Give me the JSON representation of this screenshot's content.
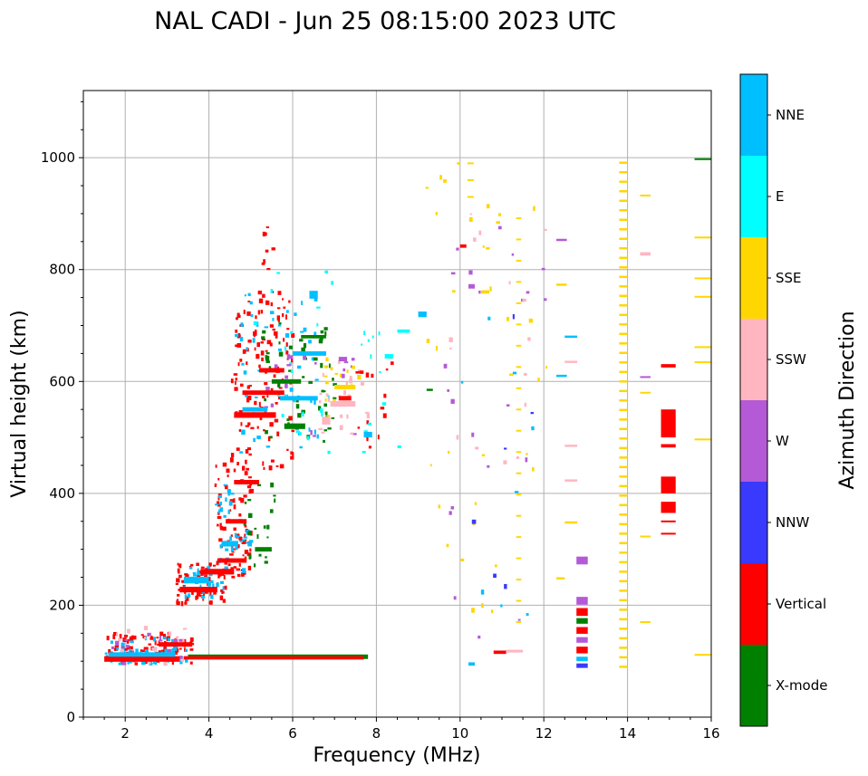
{
  "chart_data": {
    "type": "scatter",
    "title": "NAL CADI - Jun 25 08:15:00 2023 UTC",
    "xlabel": "Frequency (MHz)",
    "ylabel": "Virtual height (km)",
    "xlim": [
      1,
      16
    ],
    "ylim": [
      0,
      1120
    ],
    "xticks": [
      2,
      4,
      6,
      8,
      10,
      12,
      14,
      16
    ],
    "yticks": [
      0,
      200,
      400,
      600,
      800,
      1000
    ],
    "grid": true,
    "colorbar": {
      "label": "Azimuth Direction",
      "categories": [
        {
          "name": "X-mode",
          "color": "#008000"
        },
        {
          "name": "Vertical",
          "color": "#ff0000"
        },
        {
          "name": "NNW",
          "color": "#3a3aff"
        },
        {
          "name": "W",
          "color": "#b45ad6"
        },
        {
          "name": "SSW",
          "color": "#ffb6c1"
        },
        {
          "name": "SSE",
          "color": "#ffd700"
        },
        {
          "name": "E",
          "color": "#00ffff"
        },
        {
          "name": "NNE",
          "color": "#00bfff"
        }
      ]
    },
    "segments": [
      {
        "dir": "X-mode",
        "f0": 3.5,
        "f1": 7.8,
        "h": 108,
        "dh": 8
      },
      {
        "dir": "Vertical",
        "f0": 3.4,
        "f1": 7.7,
        "h": 106,
        "dh": 6
      },
      {
        "dir": "Vertical",
        "f0": 1.5,
        "f1": 3.3,
        "h": 104,
        "dh": 10
      },
      {
        "dir": "NNE",
        "f0": 1.6,
        "f1": 3.2,
        "h": 112,
        "dh": 8
      },
      {
        "dir": "Vertical",
        "f0": 2.8,
        "f1": 3.6,
        "h": 130,
        "dh": 8
      },
      {
        "dir": "Vertical",
        "f0": 3.3,
        "f1": 4.2,
        "h": 228,
        "dh": 10
      },
      {
        "dir": "NNE",
        "f0": 3.4,
        "f1": 4.0,
        "h": 245,
        "dh": 12
      },
      {
        "dir": "Vertical",
        "f0": 3.8,
        "f1": 4.6,
        "h": 260,
        "dh": 10
      },
      {
        "dir": "Vertical",
        "f0": 4.2,
        "f1": 4.9,
        "h": 280,
        "dh": 8
      },
      {
        "dir": "NNE",
        "f0": 4.3,
        "f1": 4.7,
        "h": 310,
        "dh": 10
      },
      {
        "dir": "Vertical",
        "f0": 4.4,
        "f1": 4.9,
        "h": 350,
        "dh": 8
      },
      {
        "dir": "X-mode",
        "f0": 5.1,
        "f1": 5.5,
        "h": 300,
        "dh": 8
      },
      {
        "dir": "Vertical",
        "f0": 4.6,
        "f1": 5.2,
        "h": 420,
        "dh": 8
      },
      {
        "dir": "Vertical",
        "f0": 4.6,
        "f1": 5.6,
        "h": 540,
        "dh": 10
      },
      {
        "dir": "NNE",
        "f0": 4.8,
        "f1": 5.4,
        "h": 550,
        "dh": 8
      },
      {
        "dir": "Vertical",
        "f0": 4.8,
        "f1": 5.8,
        "h": 580,
        "dh": 8
      },
      {
        "dir": "X-mode",
        "f0": 5.8,
        "f1": 6.3,
        "h": 520,
        "dh": 10
      },
      {
        "dir": "NNE",
        "f0": 5.7,
        "f1": 6.6,
        "h": 570,
        "dh": 8
      },
      {
        "dir": "X-mode",
        "f0": 5.5,
        "f1": 6.2,
        "h": 600,
        "dh": 8
      },
      {
        "dir": "Vertical",
        "f0": 5.2,
        "f1": 5.8,
        "h": 620,
        "dh": 8
      },
      {
        "dir": "NNE",
        "f0": 6.0,
        "f1": 6.8,
        "h": 650,
        "dh": 8
      },
      {
        "dir": "X-mode",
        "f0": 6.2,
        "f1": 6.8,
        "h": 680,
        "dh": 6
      },
      {
        "dir": "NNE",
        "f0": 6.4,
        "f1": 6.6,
        "h": 755,
        "dh": 14
      },
      {
        "dir": "SSW",
        "f0": 6.7,
        "f1": 6.9,
        "h": 530,
        "dh": 14
      },
      {
        "dir": "SSW",
        "f0": 6.9,
        "f1": 7.5,
        "h": 560,
        "dh": 10
      },
      {
        "dir": "SSE",
        "f0": 7.0,
        "f1": 7.5,
        "h": 590,
        "dh": 8
      },
      {
        "dir": "W",
        "f0": 7.1,
        "f1": 7.3,
        "h": 640,
        "dh": 8
      },
      {
        "dir": "Vertical",
        "f0": 7.1,
        "f1": 7.4,
        "h": 570,
        "dh": 8
      },
      {
        "dir": "NNE",
        "f0": 7.7,
        "f1": 7.9,
        "h": 505,
        "dh": 10
      },
      {
        "dir": "E",
        "f0": 8.2,
        "f1": 8.4,
        "h": 645,
        "dh": 8
      },
      {
        "dir": "E",
        "f0": 8.5,
        "f1": 8.8,
        "h": 690,
        "dh": 6
      },
      {
        "dir": "NNE",
        "f0": 9.0,
        "f1": 9.2,
        "h": 720,
        "dh": 10
      },
      {
        "dir": "X-mode",
        "f0": 9.2,
        "f1": 9.35,
        "h": 585,
        "dh": 4
      },
      {
        "dir": "Vertical",
        "f0": 10.0,
        "f1": 10.15,
        "h": 842,
        "dh": 6
      },
      {
        "dir": "W",
        "f0": 10.2,
        "f1": 10.35,
        "h": 770,
        "dh": 8
      },
      {
        "dir": "SSE",
        "f0": 10.5,
        "f1": 10.7,
        "h": 760,
        "dh": 6
      },
      {
        "dir": "Vertical",
        "f0": 10.8,
        "f1": 11.1,
        "h": 116,
        "dh": 6
      },
      {
        "dir": "SSW",
        "f0": 11.1,
        "f1": 11.5,
        "h": 118,
        "dh": 5
      },
      {
        "dir": "NNE",
        "f0": 10.2,
        "f1": 10.35,
        "h": 95,
        "dh": 6
      },
      {
        "dir": "W",
        "f0": 12.3,
        "f1": 12.55,
        "h": 853,
        "dh": 4
      },
      {
        "dir": "SSE",
        "f0": 12.3,
        "f1": 12.55,
        "h": 773,
        "dh": 4
      },
      {
        "dir": "NNE",
        "f0": 12.5,
        "f1": 12.8,
        "h": 680,
        "dh": 4
      },
      {
        "dir": "SSW",
        "f0": 12.5,
        "f1": 12.8,
        "h": 635,
        "dh": 4
      },
      {
        "dir": "NNE",
        "f0": 12.3,
        "f1": 12.55,
        "h": 610,
        "dh": 4
      },
      {
        "dir": "SSW",
        "f0": 12.5,
        "f1": 12.8,
        "h": 485,
        "dh": 4
      },
      {
        "dir": "SSW",
        "f0": 12.5,
        "f1": 12.8,
        "h": 423,
        "dh": 4
      },
      {
        "dir": "SSE",
        "f0": 12.5,
        "f1": 12.8,
        "h": 348,
        "dh": 4
      },
      {
        "dir": "SSE",
        "f0": 12.3,
        "f1": 12.5,
        "h": 248,
        "dh": 4
      },
      {
        "dir": "W",
        "f0": 12.78,
        "f1": 13.05,
        "h": 280,
        "dh": 14
      },
      {
        "dir": "W",
        "f0": 12.78,
        "f1": 13.05,
        "h": 208,
        "dh": 14
      },
      {
        "dir": "Vertical",
        "f0": 12.78,
        "f1": 13.05,
        "h": 188,
        "dh": 14
      },
      {
        "dir": "X-mode",
        "f0": 12.78,
        "f1": 13.05,
        "h": 172,
        "dh": 10
      },
      {
        "dir": "Vertical",
        "f0": 12.78,
        "f1": 13.05,
        "h": 155,
        "dh": 12
      },
      {
        "dir": "W",
        "f0": 12.78,
        "f1": 13.05,
        "h": 138,
        "dh": 10
      },
      {
        "dir": "Vertical",
        "f0": 12.78,
        "f1": 13.05,
        "h": 120,
        "dh": 12
      },
      {
        "dir": "NNE",
        "f0": 12.78,
        "f1": 13.05,
        "h": 104,
        "dh": 8
      },
      {
        "dir": "NNW",
        "f0": 12.78,
        "f1": 13.05,
        "h": 92,
        "dh": 8
      },
      {
        "dir": "SSW",
        "f0": 14.3,
        "f1": 14.55,
        "h": 828,
        "dh": 6
      },
      {
        "dir": "SSE",
        "f0": 14.3,
        "f1": 14.55,
        "h": 933,
        "dh": 2
      },
      {
        "dir": "W",
        "f0": 14.3,
        "f1": 14.55,
        "h": 608,
        "dh": 3
      },
      {
        "dir": "SSE",
        "f0": 14.3,
        "f1": 14.55,
        "h": 580,
        "dh": 3
      },
      {
        "dir": "SSE",
        "f0": 14.3,
        "f1": 14.55,
        "h": 323,
        "dh": 3
      },
      {
        "dir": "SSE",
        "f0": 14.3,
        "f1": 14.55,
        "h": 170,
        "dh": 3
      },
      {
        "dir": "Vertical",
        "f0": 14.8,
        "f1": 15.15,
        "h": 628,
        "dh": 6
      },
      {
        "dir": "Vertical",
        "f0": 14.8,
        "f1": 15.15,
        "h": 525,
        "dh": 50
      },
      {
        "dir": "Vertical",
        "f0": 14.8,
        "f1": 15.15,
        "h": 485,
        "dh": 6
      },
      {
        "dir": "Vertical",
        "f0": 14.8,
        "f1": 15.15,
        "h": 415,
        "dh": 30
      },
      {
        "dir": "Vertical",
        "f0": 14.8,
        "f1": 15.15,
        "h": 375,
        "dh": 20
      },
      {
        "dir": "Vertical",
        "f0": 14.8,
        "f1": 15.15,
        "h": 350,
        "dh": 3
      },
      {
        "dir": "Vertical",
        "f0": 14.8,
        "f1": 15.15,
        "h": 328,
        "dh": 3
      },
      {
        "dir": "SSE",
        "f0": 15.6,
        "f1": 16.0,
        "h": 858,
        "dh": 2
      },
      {
        "dir": "SSE",
        "f0": 15.6,
        "f1": 16.0,
        "h": 785,
        "dh": 2
      },
      {
        "dir": "SSE",
        "f0": 15.6,
        "f1": 16.0,
        "h": 752,
        "dh": 2
      },
      {
        "dir": "SSE",
        "f0": 15.6,
        "f1": 16.0,
        "h": 662,
        "dh": 2
      },
      {
        "dir": "SSE",
        "f0": 15.6,
        "f1": 16.0,
        "h": 635,
        "dh": 2
      },
      {
        "dir": "SSE",
        "f0": 15.6,
        "f1": 16.0,
        "h": 497,
        "dh": 2
      },
      {
        "dir": "SSE",
        "f0": 15.6,
        "f1": 16.0,
        "h": 112,
        "dh": 2
      },
      {
        "dir": "X-mode",
        "f0": 15.6,
        "f1": 16.0,
        "h": 998,
        "dh": 2
      }
    ],
    "columns": [
      {
        "dir": "SSE",
        "f": 13.9,
        "fw": 0.2,
        "h0": 90,
        "h1": 1000,
        "step": 17,
        "dh": 4
      },
      {
        "dir": "SSE",
        "f": 11.4,
        "fw": 0.12,
        "h0": 170,
        "h1": 900,
        "step": 38,
        "dh": 3
      },
      {
        "dir": "SSE",
        "f": 10.25,
        "fw": 0.15,
        "h0": 930,
        "h1": 1000,
        "step": 30,
        "dh": 3
      }
    ],
    "scatter_regions": [
      {
        "dir": "Vertical",
        "f0": 1.5,
        "f1": 3.6,
        "h0": 95,
        "h1": 150,
        "n": 90
      },
      {
        "dir": "NNE",
        "f0": 1.5,
        "f1": 3.5,
        "h0": 95,
        "h1": 145,
        "n": 40
      },
      {
        "dir": "SSW",
        "f0": 1.5,
        "f1": 3.4,
        "h0": 95,
        "h1": 160,
        "n": 25
      },
      {
        "dir": "W",
        "f0": 1.5,
        "f1": 3.4,
        "h0": 95,
        "h1": 150,
        "n": 20
      },
      {
        "dir": "Vertical",
        "f0": 3.2,
        "f1": 4.4,
        "h0": 200,
        "h1": 280,
        "n": 70
      },
      {
        "dir": "NNE",
        "f0": 3.3,
        "f1": 4.4,
        "h0": 210,
        "h1": 270,
        "n": 30
      },
      {
        "dir": "Vertical",
        "f0": 4.1,
        "f1": 5.0,
        "h0": 250,
        "h1": 460,
        "n": 90
      },
      {
        "dir": "NNE",
        "f0": 4.1,
        "f1": 5.0,
        "h0": 260,
        "h1": 420,
        "n": 35
      },
      {
        "dir": "X-mode",
        "f0": 4.8,
        "f1": 5.6,
        "h0": 270,
        "h1": 420,
        "n": 20
      },
      {
        "dir": "Vertical",
        "f0": 4.5,
        "f1": 6.0,
        "h0": 440,
        "h1": 760,
        "n": 130
      },
      {
        "dir": "NNE",
        "f0": 4.6,
        "f1": 6.6,
        "h0": 470,
        "h1": 760,
        "n": 50
      },
      {
        "dir": "X-mode",
        "f0": 5.2,
        "f1": 7.0,
        "h0": 480,
        "h1": 710,
        "n": 50
      },
      {
        "dir": "E",
        "f0": 5.0,
        "f1": 7.0,
        "h0": 440,
        "h1": 810,
        "n": 25
      },
      {
        "dir": "W",
        "f0": 5.3,
        "f1": 7.5,
        "h0": 480,
        "h1": 650,
        "n": 20
      },
      {
        "dir": "SSW",
        "f0": 6.6,
        "f1": 7.8,
        "h0": 500,
        "h1": 650,
        "n": 25
      },
      {
        "dir": "SSE",
        "f0": 6.6,
        "f1": 7.6,
        "h0": 520,
        "h1": 640,
        "n": 15
      },
      {
        "dir": "Vertical",
        "f0": 5.2,
        "f1": 5.5,
        "h0": 800,
        "h1": 880,
        "n": 8
      },
      {
        "dir": "Vertical",
        "f0": 7.2,
        "f1": 8.4,
        "h0": 480,
        "h1": 660,
        "n": 15
      },
      {
        "dir": "E",
        "f0": 7.6,
        "f1": 8.6,
        "h0": 470,
        "h1": 700,
        "n": 12
      },
      {
        "dir": "SSE",
        "f0": 9.0,
        "f1": 12.2,
        "h0": 160,
        "h1": 1000,
        "n": 35
      },
      {
        "dir": "W",
        "f0": 9.6,
        "f1": 12.1,
        "h0": 110,
        "h1": 880,
        "n": 22
      },
      {
        "dir": "SSW",
        "f0": 9.5,
        "f1": 12.2,
        "h0": 440,
        "h1": 940,
        "n": 15
      },
      {
        "dir": "NNE",
        "f0": 9.6,
        "f1": 11.8,
        "h0": 100,
        "h1": 740,
        "n": 8
      },
      {
        "dir": "NNW",
        "f0": 10.0,
        "f1": 11.8,
        "h0": 130,
        "h1": 730,
        "n": 6
      }
    ]
  }
}
